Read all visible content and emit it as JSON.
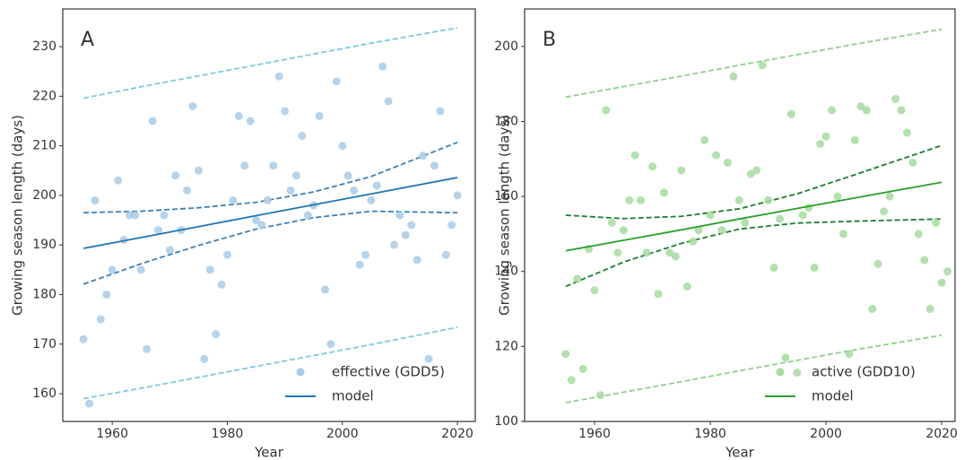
{
  "chart_data": [
    {
      "type": "scatter",
      "annotation": "A",
      "xlabel": "Year",
      "ylabel": "Growing season length (days)",
      "xlim": [
        1951.4,
        2023.1
      ],
      "ylim": [
        154.4,
        237.6
      ],
      "xticks": [
        1960,
        1980,
        2000,
        2020
      ],
      "yticks": [
        160,
        170,
        180,
        190,
        200,
        210,
        220,
        230
      ],
      "legend": "lower right",
      "x": [
        1955,
        1956,
        1957,
        1958,
        1959,
        1960,
        1961,
        1962,
        1963,
        1964,
        1965,
        1966,
        1967,
        1968,
        1969,
        1970,
        1971,
        1972,
        1973,
        1974,
        1975,
        1976,
        1977,
        1978,
        1979,
        1980,
        1981,
        1982,
        1983,
        1984,
        1985,
        1986,
        1987,
        1988,
        1989,
        1990,
        1991,
        1992,
        1993,
        1994,
        1995,
        1996,
        1997,
        1998,
        1999,
        2000,
        2001,
        2002,
        2003,
        2004,
        2005,
        2006,
        2007,
        2008,
        2009,
        2010,
        2011,
        2012,
        2013,
        2014,
        2015,
        2016,
        2017,
        2018,
        2019,
        2020
      ],
      "series": [
        {
          "name": "effective (GDD5)",
          "kind": "scatter",
          "color": "#a8cbe6",
          "values": [
            171,
            158,
            199,
            175,
            180,
            185,
            203,
            191,
            196,
            196,
            185,
            169,
            215,
            193,
            196,
            189,
            204,
            193,
            201,
            218,
            205,
            167,
            185,
            172,
            182,
            188,
            199,
            216,
            206,
            215,
            195,
            194,
            199,
            206,
            224,
            217,
            201,
            204,
            212,
            196,
            198,
            216,
            181,
            170,
            223,
            210,
            204,
            201,
            186,
            188,
            199,
            202,
            226,
            219,
            190,
            196,
            192,
            194,
            187,
            208,
            167,
            206,
            217,
            188,
            194,
            200
          ]
        },
        {
          "name": "model",
          "kind": "line",
          "color": "#1f77b4",
          "x": [
            1955,
            1965,
            1975,
            1985,
            1995,
            2005,
            2020
          ],
          "values": [
            189.3,
            191.5,
            193.7,
            195.9,
            198.1,
            200.3,
            203.6
          ]
        }
      ],
      "bands": [
        {
          "color": "#3d80b8",
          "x": [
            1955,
            1965,
            1975,
            1985,
            1995,
            2005,
            2020
          ],
          "lower": [
            182.1,
            186.2,
            189.9,
            193.2,
            195.5,
            196.8,
            196.5
          ],
          "upper": [
            196.5,
            196.8,
            197.5,
            198.6,
            200.7,
            203.8,
            210.7
          ]
        },
        {
          "color": "#7ec8e3",
          "x": [
            1955,
            1965,
            1975,
            1985,
            1995,
            2005,
            2020
          ],
          "lower": [
            159,
            161.1,
            163.3,
            165.5,
            167.7,
            169.9,
            173.4
          ],
          "upper": [
            219.6,
            221.9,
            224.1,
            226.3,
            228.5,
            230.7,
            233.8
          ]
        }
      ]
    },
    {
      "type": "scatter",
      "annotation": "B",
      "xlabel": "Year",
      "ylabel": "Growing season length (days)",
      "xlim": [
        1947.9,
        2022.3
      ],
      "ylim": [
        100,
        210
      ],
      "xticks": [
        1960,
        1980,
        2000,
        2020
      ],
      "yticks": [
        100,
        120,
        140,
        160,
        180,
        200
      ],
      "legend": "lower right",
      "x": [
        1955,
        1956,
        1957,
        1958,
        1959,
        1960,
        1961,
        1962,
        1963,
        1964,
        1965,
        1966,
        1967,
        1968,
        1969,
        1970,
        1971,
        1972,
        1973,
        1974,
        1975,
        1976,
        1977,
        1978,
        1979,
        1980,
        1981,
        1982,
        1983,
        1984,
        1985,
        1986,
        1987,
        1988,
        1989,
        1990,
        1991,
        1992,
        1993,
        1994,
        1995,
        1996,
        1997,
        1998,
        1999,
        2000,
        2001,
        2002,
        2003,
        2004,
        2005,
        2006,
        2007,
        2008,
        2009,
        2010,
        2011,
        2012,
        2013,
        2014,
        2015,
        2016,
        2017,
        2018,
        2019,
        2020,
        2021
      ],
      "series": [
        {
          "name": "active (GDD10)",
          "kind": "scatter",
          "color": "#a6dba0",
          "values": [
            118,
            111,
            138,
            114,
            146,
            135,
            107,
            183,
            153,
            145,
            151,
            159,
            171,
            159,
            145,
            168,
            134,
            161,
            145,
            144,
            167,
            136,
            148,
            151,
            175,
            155,
            171,
            151,
            169,
            192,
            159,
            153,
            166,
            167,
            195,
            159,
            141,
            154,
            117,
            182,
            113,
            155,
            157,
            141,
            174,
            176,
            183,
            160,
            150,
            118,
            175,
            184,
            183,
            130,
            142,
            156,
            160,
            186,
            183,
            177,
            169,
            150,
            143,
            130,
            153,
            137,
            140
          ]
        },
        {
          "name": "model",
          "kind": "line",
          "color": "#2ca02c",
          "x": [
            1955,
            1965,
            1975,
            1985,
            1995,
            2005,
            2020
          ],
          "values": [
            145.5,
            148.3,
            151.1,
            154.0,
            156.8,
            159.6,
            163.8
          ]
        }
      ],
      "bands": [
        {
          "color": "#1a7f2e",
          "x": [
            1955,
            1965,
            1975,
            1985,
            1995,
            2005,
            2020
          ],
          "lower": [
            136,
            142.5,
            147.5,
            151.3,
            152.9,
            153.4,
            154
          ],
          "upper": [
            155,
            154.1,
            154.7,
            156.7,
            160.7,
            165.8,
            173.6
          ]
        },
        {
          "color": "#90d08a",
          "x": [
            1955,
            1965,
            1975,
            1985,
            1995,
            2005,
            2020
          ],
          "lower": [
            105,
            107.8,
            110.6,
            113.5,
            116.3,
            119.1,
            123.0
          ],
          "upper": [
            186.5,
            189.3,
            192.1,
            195,
            197.8,
            200.6,
            204.6
          ]
        }
      ]
    }
  ]
}
